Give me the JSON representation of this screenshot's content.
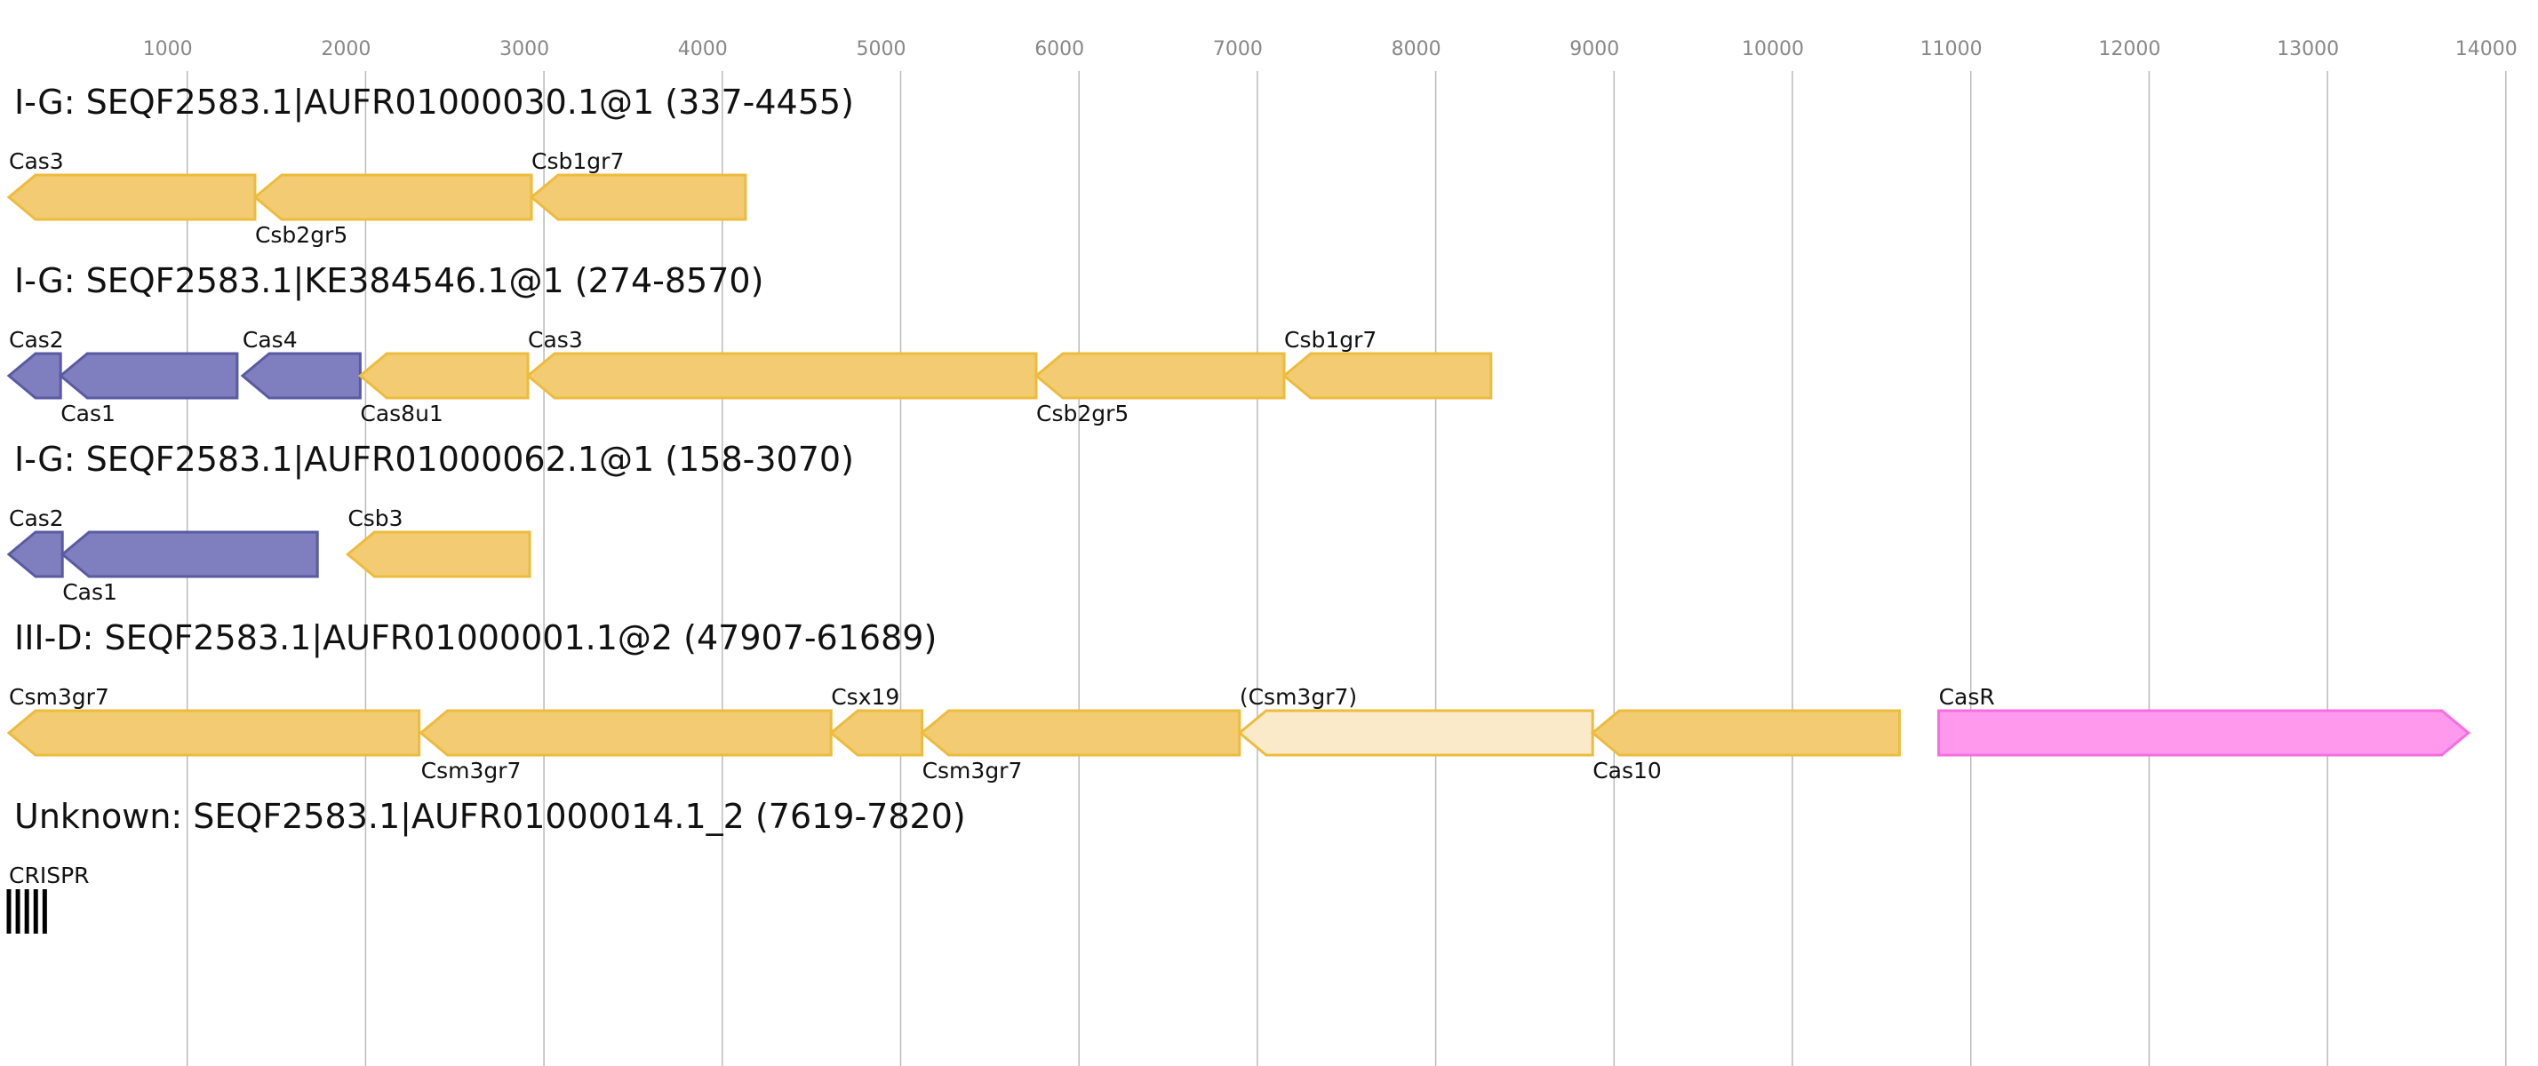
{
  "axis": {
    "ticks": [
      1000,
      2000,
      3000,
      4000,
      5000,
      6000,
      7000,
      8000,
      9000,
      10000,
      11000,
      12000,
      13000,
      14000
    ],
    "tick_labels": [
      "1000",
      "2000",
      "3000",
      "4000",
      "5000",
      "6000",
      "7000",
      "8000",
      "9000",
      "10000",
      "11000",
      "12000",
      "13000",
      "14000"
    ],
    "range": [
      0,
      14200
    ]
  },
  "colors": {
    "adaptation_fill": "#7f7fbf",
    "adaptation_stroke": "#5a5aa3",
    "interference_fill": "#f2cb73",
    "interference_stroke": "#edbc3c",
    "uncertain_fill": "#faeaca",
    "uncertain_stroke": "#edbc3c",
    "regulator_fill": "#ff99ee",
    "regulator_stroke": "#f56ee0",
    "crispr": "#000000",
    "grid": "#bbbbbb"
  },
  "tracks": [
    {
      "title": "I-G: SEQF2583.1|AUFR01000030.1@1 (337-4455)",
      "genes": [
        {
          "label": "Cas3",
          "start": 0,
          "end": 1380,
          "strand": "-",
          "category": "interference",
          "label_pos": "above"
        },
        {
          "label": "Csb2gr5",
          "start": 1380,
          "end": 2930,
          "strand": "-",
          "category": "interference",
          "label_pos": "below"
        },
        {
          "label": "Csb1gr7",
          "start": 2930,
          "end": 4130,
          "strand": "-",
          "category": "interference",
          "label_pos": "above"
        }
      ]
    },
    {
      "title": "I-G: SEQF2583.1|KE384546.1@1 (274-8570)",
      "genes": [
        {
          "label": "Cas2",
          "start": 0,
          "end": 290,
          "strand": "-",
          "category": "adaptation",
          "label_pos": "above"
        },
        {
          "label": "Cas1",
          "start": 290,
          "end": 1280,
          "strand": "-",
          "category": "adaptation",
          "label_pos": "below"
        },
        {
          "label": "Cas4",
          "start": 1310,
          "end": 1970,
          "strand": "-",
          "category": "adaptation",
          "label_pos": "above"
        },
        {
          "label": "Cas8u1",
          "start": 1970,
          "end": 2910,
          "strand": "-",
          "category": "interference",
          "label_pos": "below"
        },
        {
          "label": "Cas3",
          "start": 2910,
          "end": 5760,
          "strand": "-",
          "category": "interference",
          "label_pos": "above"
        },
        {
          "label": "Csb2gr5",
          "start": 5760,
          "end": 7150,
          "strand": "-",
          "category": "interference",
          "label_pos": "below"
        },
        {
          "label": "Csb1gr7",
          "start": 7150,
          "end": 8310,
          "strand": "-",
          "category": "interference",
          "label_pos": "above"
        }
      ]
    },
    {
      "title": "I-G: SEQF2583.1|AUFR01000062.1@1 (158-3070)",
      "genes": [
        {
          "label": "Cas2",
          "start": 0,
          "end": 300,
          "strand": "-",
          "category": "adaptation",
          "label_pos": "above"
        },
        {
          "label": "Cas1",
          "start": 300,
          "end": 1730,
          "strand": "-",
          "category": "adaptation",
          "label_pos": "below"
        },
        {
          "label": "Csb3",
          "start": 1900,
          "end": 2920,
          "strand": "-",
          "category": "interference",
          "label_pos": "above"
        }
      ]
    },
    {
      "title": "III-D: SEQF2583.1|AUFR01000001.1@2 (47907-61689)",
      "genes": [
        {
          "label": "Csm3gr7",
          "start": 0,
          "end": 2300,
          "strand": "-",
          "category": "interference",
          "label_pos": "above"
        },
        {
          "label": "Csm3gr7",
          "start": 2310,
          "end": 4610,
          "strand": "-",
          "category": "interference",
          "label_pos": "below"
        },
        {
          "label": "Csx19",
          "start": 4610,
          "end": 5120,
          "strand": "-",
          "category": "interference",
          "label_pos": "above"
        },
        {
          "label": "Csm3gr7",
          "start": 5120,
          "end": 6900,
          "strand": "-",
          "category": "interference",
          "label_pos": "below"
        },
        {
          "label": "(Csm3gr7)",
          "start": 6900,
          "end": 8880,
          "strand": "-",
          "category": "uncertain",
          "label_pos": "above"
        },
        {
          "label": "Cas10",
          "start": 8880,
          "end": 10600,
          "strand": "-",
          "category": "interference",
          "label_pos": "below"
        },
        {
          "label": "CasR",
          "start": 10820,
          "end": 13790,
          "strand": "+",
          "category": "regulator",
          "label_pos": "above"
        }
      ]
    },
    {
      "title": "Unknown: SEQF2583.1|AUFR01000014.1_2 (7619-7820)",
      "genes": [
        {
          "label": "CRISPR",
          "start": 0,
          "end": 201,
          "strand": "none",
          "category": "crispr",
          "label_pos": "above",
          "repeats": 5
        }
      ]
    }
  ]
}
